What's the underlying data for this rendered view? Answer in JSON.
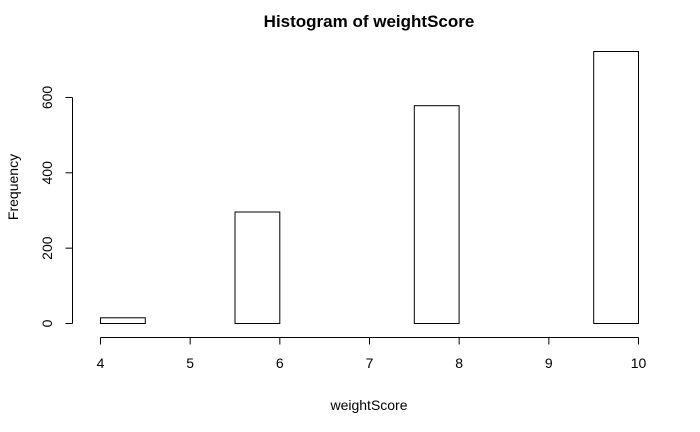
{
  "chart_data": {
    "type": "bar",
    "title": "Histogram of weightScore",
    "xlabel": "weightScore",
    "ylabel": "Frequency",
    "bins": [
      {
        "start": 4.0,
        "end": 4.5,
        "count": 15
      },
      {
        "start": 4.5,
        "end": 5.0,
        "count": 0
      },
      {
        "start": 5.0,
        "end": 5.5,
        "count": 0
      },
      {
        "start": 5.5,
        "end": 6.0,
        "count": 296
      },
      {
        "start": 6.0,
        "end": 6.5,
        "count": 0
      },
      {
        "start": 6.5,
        "end": 7.0,
        "count": 0
      },
      {
        "start": 7.0,
        "end": 7.5,
        "count": 0
      },
      {
        "start": 7.5,
        "end": 8.0,
        "count": 578
      },
      {
        "start": 8.0,
        "end": 8.5,
        "count": 0
      },
      {
        "start": 8.5,
        "end": 9.0,
        "count": 0
      },
      {
        "start": 9.0,
        "end": 9.5,
        "count": 0
      },
      {
        "start": 9.5,
        "end": 10.0,
        "count": 722
      }
    ],
    "xlim": [
      4,
      10
    ],
    "ylim": [
      0,
      722
    ],
    "x_ticks": [
      "4",
      "5",
      "6",
      "7",
      "8",
      "9",
      "10"
    ],
    "y_ticks": [
      "0",
      "200",
      "400",
      "600"
    ],
    "grid": false
  }
}
